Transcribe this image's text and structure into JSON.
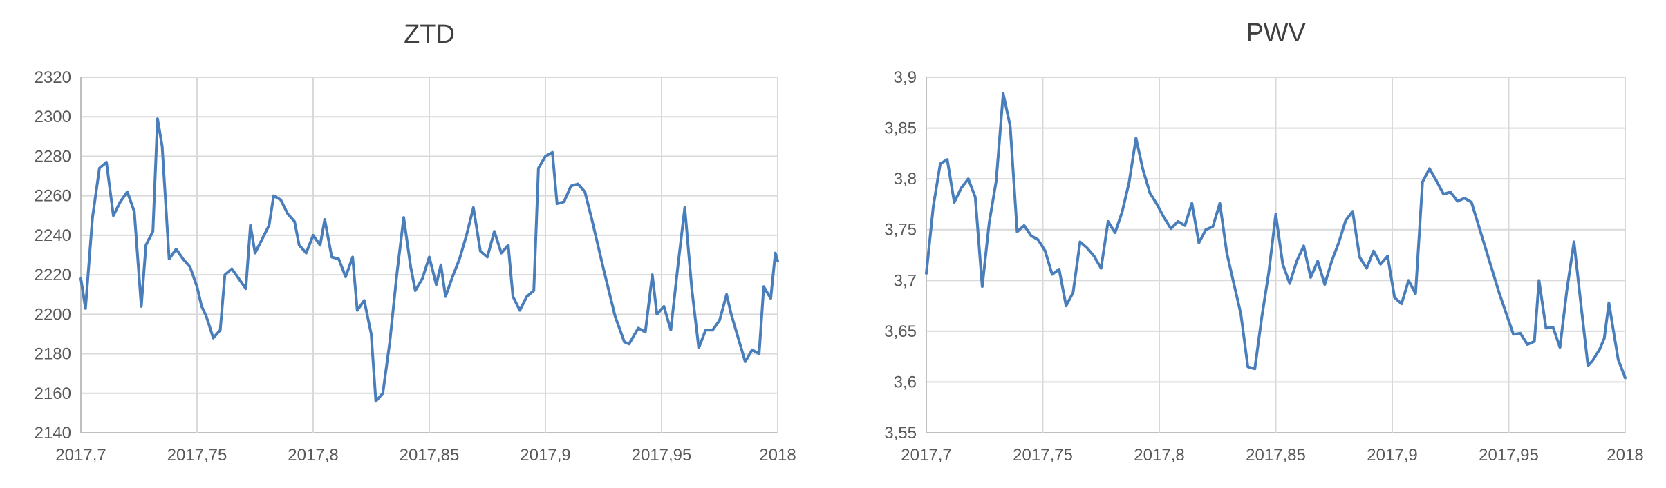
{
  "chart_data": [
    {
      "type": "line",
      "title": "ZTD",
      "xlabel": "",
      "ylabel": "",
      "xlim": [
        2017.7,
        2018
      ],
      "ylim": [
        2140,
        2320
      ],
      "grid": true,
      "legend": "none",
      "x_ticks": [
        "2017,7",
        "2017,75",
        "2017,8",
        "2017,85",
        "2017,9",
        "2017,95",
        "2018"
      ],
      "y_ticks": [
        "2140",
        "2160",
        "2180",
        "2200",
        "2220",
        "2240",
        "2260",
        "2280",
        "2300",
        "2320"
      ],
      "series": [
        {
          "color": "#4a7ebb",
          "points": [
            [
              2017.7,
              2218
            ],
            [
              2017.702,
              2203
            ],
            [
              2017.705,
              2249
            ],
            [
              2017.708,
              2274
            ],
            [
              2017.711,
              2277
            ],
            [
              2017.714,
              2250
            ],
            [
              2017.717,
              2257
            ],
            [
              2017.72,
              2262
            ],
            [
              2017.723,
              2252
            ],
            [
              2017.726,
              2204
            ],
            [
              2017.728,
              2235
            ],
            [
              2017.731,
              2242
            ],
            [
              2017.733,
              2299
            ],
            [
              2017.735,
              2285
            ],
            [
              2017.738,
              2228
            ],
            [
              2017.741,
              2233
            ],
            [
              2017.744,
              2228
            ],
            [
              2017.747,
              2224
            ],
            [
              2017.75,
              2214
            ],
            [
              2017.752,
              2204
            ],
            [
              2017.754,
              2199
            ],
            [
              2017.757,
              2188
            ],
            [
              2017.76,
              2192
            ],
            [
              2017.762,
              2220
            ],
            [
              2017.765,
              2223
            ],
            [
              2017.768,
              2218
            ],
            [
              2017.771,
              2213
            ],
            [
              2017.773,
              2245
            ],
            [
              2017.775,
              2231
            ],
            [
              2017.778,
              2238
            ],
            [
              2017.781,
              2245
            ],
            [
              2017.783,
              2260
            ],
            [
              2017.786,
              2258
            ],
            [
              2017.789,
              2251
            ],
            [
              2017.792,
              2247
            ],
            [
              2017.794,
              2235
            ],
            [
              2017.797,
              2231
            ],
            [
              2017.8,
              2240
            ],
            [
              2017.803,
              2235
            ],
            [
              2017.805,
              2248
            ],
            [
              2017.808,
              2229
            ],
            [
              2017.811,
              2228
            ],
            [
              2017.814,
              2219
            ],
            [
              2017.817,
              2229
            ],
            [
              2017.819,
              2202
            ],
            [
              2017.822,
              2207
            ],
            [
              2017.825,
              2190
            ],
            [
              2017.827,
              2156
            ],
            [
              2017.83,
              2160
            ],
            [
              2017.833,
              2186
            ],
            [
              2017.836,
              2220
            ],
            [
              2017.839,
              2249
            ],
            [
              2017.842,
              2224
            ],
            [
              2017.844,
              2212
            ],
            [
              2017.847,
              2218
            ],
            [
              2017.85,
              2229
            ],
            [
              2017.853,
              2215
            ],
            [
              2017.855,
              2225
            ],
            [
              2017.857,
              2209
            ],
            [
              2017.86,
              2219
            ],
            [
              2017.863,
              2228
            ],
            [
              2017.866,
              2240
            ],
            [
              2017.869,
              2254
            ],
            [
              2017.872,
              2232
            ],
            [
              2017.875,
              2229
            ],
            [
              2017.878,
              2242
            ],
            [
              2017.881,
              2231
            ],
            [
              2017.884,
              2235
            ],
            [
              2017.886,
              2209
            ],
            [
              2017.889,
              2202
            ],
            [
              2017.892,
              2209
            ],
            [
              2017.895,
              2212
            ],
            [
              2017.897,
              2274
            ],
            [
              2017.9,
              2280
            ],
            [
              2017.903,
              2282
            ],
            [
              2017.905,
              2256
            ],
            [
              2017.908,
              2257
            ],
            [
              2017.911,
              2265
            ],
            [
              2017.914,
              2266
            ],
            [
              2017.917,
              2262
            ],
            [
              2017.92,
              2248
            ],
            [
              2017.925,
              2223
            ],
            [
              2017.93,
              2199
            ],
            [
              2017.934,
              2186
            ],
            [
              2017.936,
              2185
            ],
            [
              2017.94,
              2193
            ],
            [
              2017.943,
              2191
            ],
            [
              2017.946,
              2220
            ],
            [
              2017.948,
              2200
            ],
            [
              2017.951,
              2204
            ],
            [
              2017.954,
              2192
            ],
            [
              2017.957,
              2224
            ],
            [
              2017.96,
              2254
            ],
            [
              2017.963,
              2213
            ],
            [
              2017.966,
              2183
            ],
            [
              2017.969,
              2192
            ],
            [
              2017.972,
              2192
            ],
            [
              2017.975,
              2197
            ],
            [
              2017.978,
              2210
            ],
            [
              2017.98,
              2200
            ],
            [
              2017.983,
              2188
            ],
            [
              2017.986,
              2176
            ],
            [
              2017.989,
              2182
            ],
            [
              2017.992,
              2180
            ],
            [
              2017.994,
              2214
            ],
            [
              2017.997,
              2208
            ],
            [
              2017.999,
              2231
            ],
            [
              2018.0,
              2227
            ]
          ]
        }
      ]
    },
    {
      "type": "line",
      "title": "PWV",
      "xlabel": "",
      "ylabel": "",
      "xlim": [
        2017.7,
        2018
      ],
      "ylim": [
        3.55,
        3.9
      ],
      "grid": true,
      "legend": "none",
      "x_ticks": [
        "2017,7",
        "2017,75",
        "2017,8",
        "2017,85",
        "2017,9",
        "2017,95",
        "2018"
      ],
      "y_ticks": [
        "3,55",
        "3,6",
        "3,65",
        "3,7",
        "3,75",
        "3,8",
        "3,85",
        "3,9"
      ],
      "series": [
        {
          "color": "#4a7ebb",
          "points": [
            [
              2017.7,
              3.707
            ],
            [
              2017.703,
              3.773
            ],
            [
              2017.706,
              3.815
            ],
            [
              2017.709,
              3.819
            ],
            [
              2017.712,
              3.777
            ],
            [
              2017.715,
              3.791
            ],
            [
              2017.718,
              3.8
            ],
            [
              2017.721,
              3.782
            ],
            [
              2017.724,
              3.694
            ],
            [
              2017.727,
              3.757
            ],
            [
              2017.73,
              3.798
            ],
            [
              2017.733,
              3.884
            ],
            [
              2017.736,
              3.852
            ],
            [
              2017.739,
              3.748
            ],
            [
              2017.742,
              3.754
            ],
            [
              2017.745,
              3.744
            ],
            [
              2017.748,
              3.74
            ],
            [
              2017.751,
              3.729
            ],
            [
              2017.754,
              3.706
            ],
            [
              2017.757,
              3.711
            ],
            [
              2017.76,
              3.675
            ],
            [
              2017.763,
              3.688
            ],
            [
              2017.766,
              3.738
            ],
            [
              2017.769,
              3.732
            ],
            [
              2017.772,
              3.724
            ],
            [
              2017.775,
              3.712
            ],
            [
              2017.778,
              3.758
            ],
            [
              2017.781,
              3.747
            ],
            [
              2017.784,
              3.767
            ],
            [
              2017.787,
              3.796
            ],
            [
              2017.79,
              3.84
            ],
            [
              2017.793,
              3.809
            ],
            [
              2017.796,
              3.786
            ],
            [
              2017.799,
              3.775
            ],
            [
              2017.802,
              3.762
            ],
            [
              2017.805,
              3.751
            ],
            [
              2017.808,
              3.758
            ],
            [
              2017.811,
              3.754
            ],
            [
              2017.814,
              3.776
            ],
            [
              2017.817,
              3.737
            ],
            [
              2017.82,
              3.75
            ],
            [
              2017.823,
              3.753
            ],
            [
              2017.826,
              3.776
            ],
            [
              2017.829,
              3.727
            ],
            [
              2017.832,
              3.697
            ],
            [
              2017.835,
              3.667
            ],
            [
              2017.838,
              3.615
            ],
            [
              2017.841,
              3.613
            ],
            [
              2017.844,
              3.664
            ],
            [
              2017.847,
              3.708
            ],
            [
              2017.85,
              3.765
            ],
            [
              2017.853,
              3.716
            ],
            [
              2017.856,
              3.697
            ],
            [
              2017.859,
              3.719
            ],
            [
              2017.862,
              3.734
            ],
            [
              2017.865,
              3.703
            ],
            [
              2017.868,
              3.719
            ],
            [
              2017.871,
              3.696
            ],
            [
              2017.874,
              3.719
            ],
            [
              2017.877,
              3.737
            ],
            [
              2017.88,
              3.759
            ],
            [
              2017.883,
              3.768
            ],
            [
              2017.886,
              3.723
            ],
            [
              2017.889,
              3.712
            ],
            [
              2017.892,
              3.729
            ],
            [
              2017.895,
              3.716
            ],
            [
              2017.898,
              3.724
            ],
            [
              2017.901,
              3.683
            ],
            [
              2017.904,
              3.677
            ],
            [
              2017.907,
              3.7
            ],
            [
              2017.91,
              3.687
            ],
            [
              2017.913,
              3.797
            ],
            [
              2017.916,
              3.81
            ],
            [
              2017.919,
              3.798
            ],
            [
              2017.922,
              3.785
            ],
            [
              2017.925,
              3.787
            ],
            [
              2017.928,
              3.778
            ],
            [
              2017.931,
              3.781
            ],
            [
              2017.934,
              3.777
            ],
            [
              2017.94,
              3.732
            ],
            [
              2017.946,
              3.687
            ],
            [
              2017.952,
              3.647
            ],
            [
              2017.955,
              3.648
            ],
            [
              2017.958,
              3.637
            ],
            [
              2017.961,
              3.64
            ],
            [
              2017.963,
              3.7
            ],
            [
              2017.966,
              3.653
            ],
            [
              2017.969,
              3.654
            ],
            [
              2017.972,
              3.634
            ],
            [
              2017.975,
              3.691
            ],
            [
              2017.978,
              3.738
            ],
            [
              2017.981,
              3.676
            ],
            [
              2017.984,
              3.616
            ],
            [
              2017.986,
              3.621
            ],
            [
              2017.989,
              3.632
            ],
            [
              2017.991,
              3.643
            ],
            [
              2017.993,
              3.678
            ],
            [
              2017.995,
              3.65
            ],
            [
              2017.997,
              3.622
            ],
            [
              2018.0,
              3.604
            ]
          ]
        }
      ]
    }
  ]
}
